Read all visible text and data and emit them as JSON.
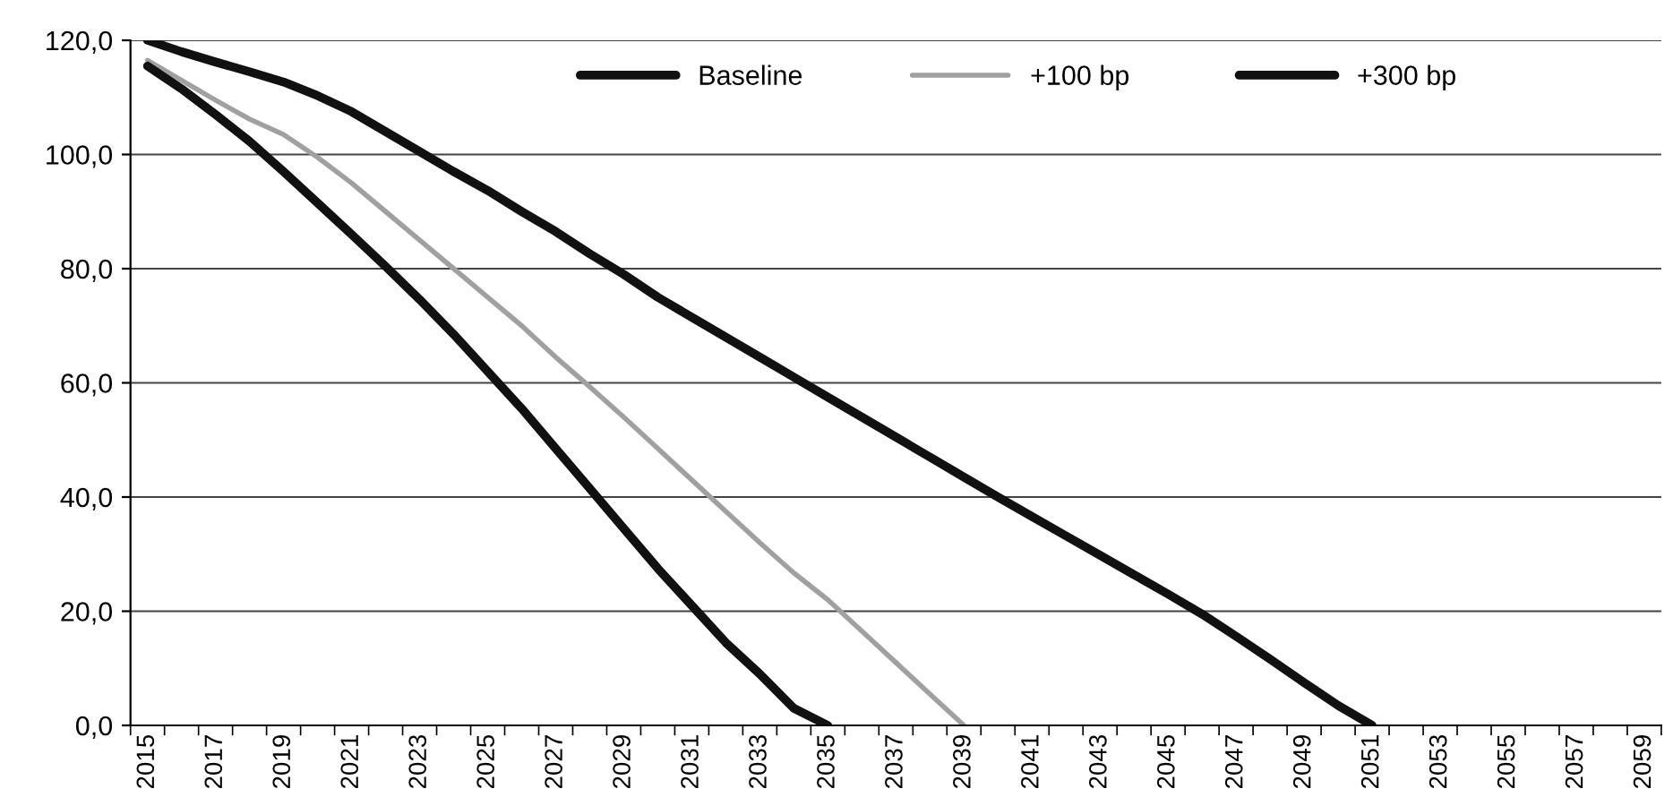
{
  "chart_data": {
    "type": "line",
    "categories": [
      "2015",
      null,
      "2017",
      null,
      "2019",
      null,
      "2021",
      null,
      "2023",
      null,
      "2025",
      null,
      "2027",
      null,
      "2029",
      null,
      "2031",
      null,
      "2033",
      null,
      "2035",
      null,
      "2037",
      null,
      "2039",
      null,
      "2041",
      null,
      "2043",
      null,
      "2045",
      null,
      "2047",
      null,
      "2049",
      null,
      "2051",
      null,
      "2053",
      null,
      "2055",
      null,
      "2057",
      null,
      "2059"
    ],
    "series": [
      {
        "name": "Baseline",
        "color": "#111111",
        "values": [
          120,
          118,
          116.2,
          114.5,
          112.7,
          110.3,
          107.5,
          104,
          100.5,
          97,
          93.7,
          90,
          86.5,
          82.6,
          79,
          75,
          71.5,
          68,
          64.5,
          61,
          57.5,
          54,
          50.5,
          47,
          43.5,
          40,
          36.6,
          33.2,
          29.8,
          26.4,
          23,
          19.5,
          15.6,
          11.6,
          7.5,
          3.5,
          0,
          null,
          null,
          null,
          null,
          null,
          null,
          null,
          null
        ]
      },
      {
        "name": "+100 bp",
        "color": "#a0a0a0",
        "values": [
          116.5,
          113,
          109.5,
          106.2,
          103.5,
          99.5,
          95,
          90,
          85,
          80,
          75,
          70,
          64.5,
          59.3,
          54,
          48.5,
          43,
          37.5,
          32,
          26.7,
          22,
          16.5,
          11,
          5.5,
          0,
          null,
          null,
          null,
          null,
          null,
          null,
          null,
          null,
          null,
          null,
          null,
          null,
          null,
          null,
          null,
          null,
          null,
          null,
          null,
          null
        ]
      },
      {
        "name": "+300 bp",
        "color": "#111111",
        "values": [
          115.5,
          111.5,
          107,
          102.3,
          97,
          91.5,
          86,
          80.4,
          74.6,
          68.5,
          62,
          55.5,
          48.5,
          41.5,
          34.5,
          27.5,
          21,
          14.5,
          9,
          3,
          0,
          null,
          null,
          null,
          null,
          null,
          null,
          null,
          null,
          null,
          null,
          null,
          null,
          null,
          null,
          null,
          null,
          null,
          null,
          null,
          null,
          null,
          null,
          null,
          null
        ]
      }
    ],
    "ylim": [
      0,
      120
    ],
    "yticks": [
      {
        "value": 0,
        "label": "0,0"
      },
      {
        "value": 20,
        "label": "20,0"
      },
      {
        "value": 40,
        "label": "40,0"
      },
      {
        "value": 60,
        "label": "60,0"
      },
      {
        "value": 80,
        "label": "80,0"
      },
      {
        "value": 100,
        "label": "100,0"
      },
      {
        "value": 120,
        "label": "120,0"
      }
    ],
    "grid": "y",
    "legend": "top",
    "marker": "none",
    "line_style": "solid"
  }
}
